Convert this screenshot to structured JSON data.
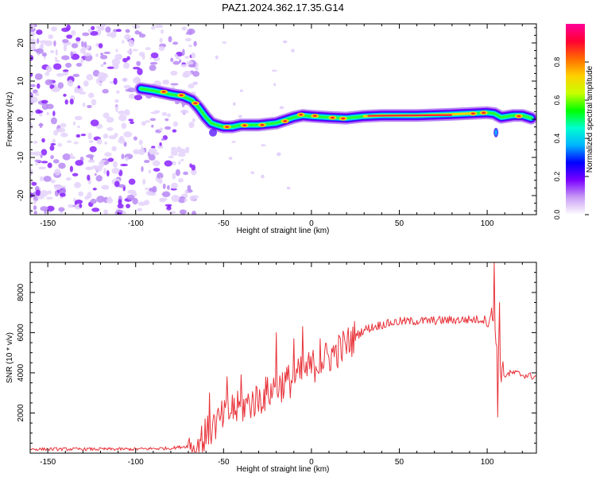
{
  "title": "PAZ1.2024.362.17.35.G14",
  "colors": {
    "snr_line": "#e8333a",
    "frame": "#000000"
  },
  "chart_data": [
    {
      "type": "heatmap",
      "name": "spectrogram",
      "xlabel": "Height of straight line (km)",
      "ylabel": "Frequency (Hz)",
      "xlim": [
        -160,
        128
      ],
      "ylim": [
        -25,
        25
      ],
      "x_ticks": [
        -150,
        -100,
        -50,
        0,
        50,
        100
      ],
      "y_ticks": [
        -20,
        -10,
        0,
        10,
        20
      ],
      "colorbar": {
        "label": "Normalized spectral amplitude",
        "range": [
          0,
          1
        ],
        "ticks": [
          "0.0",
          "0.2",
          "0.4",
          "0.6",
          "0.8"
        ],
        "colormap": [
          "#ffffff",
          "#c99cf5",
          "#7a00ff",
          "#0000ff",
          "#00b4ff",
          "#00ffd0",
          "#00ff00",
          "#c8ff00",
          "#ffd000",
          "#ff6a00",
          "#ff0033",
          "#ff0099"
        ]
      },
      "ridge": {
        "x": [
          -97,
          -90,
          -80,
          -73,
          -68,
          -64,
          -60,
          -57,
          -54,
          -50,
          -45,
          -40,
          -30,
          -20,
          -10,
          -5,
          0,
          10,
          20,
          30,
          40,
          60,
          80,
          90,
          100,
          104,
          108,
          115,
          120,
          125
        ],
        "y": [
          8,
          7.5,
          6.5,
          6,
          5,
          3,
          0.5,
          -1,
          -1.5,
          -2,
          -2,
          -1.5,
          -1.5,
          -1,
          0.5,
          1,
          0.8,
          0.5,
          0.3,
          0.8,
          1,
          1,
          1.3,
          1.5,
          1.7,
          1.5,
          0.5,
          1,
          1,
          0.3
        ]
      }
    },
    {
      "type": "line",
      "name": "snr",
      "xlabel": "Height of straight line (km)",
      "ylabel": "SNR (10 * v/v)",
      "xlim": [
        -160,
        128
      ],
      "ylim": [
        0,
        9500
      ],
      "x_ticks": [
        -150,
        -100,
        -50,
        0,
        50,
        100
      ],
      "y_ticks": [
        2000,
        4000,
        6000,
        8000
      ],
      "trend": {
        "x": [
          -160,
          -100,
          -80,
          -70,
          -65,
          -60,
          -55,
          -50,
          -40,
          -30,
          -20,
          -10,
          0,
          10,
          20,
          25,
          30,
          40,
          50,
          70,
          90,
          100,
          103,
          105,
          107,
          110,
          115,
          120,
          128
        ],
        "y": [
          200,
          200,
          250,
          350,
          500,
          900,
          1400,
          1800,
          2300,
          2700,
          3300,
          3700,
          4300,
          4800,
          5400,
          5800,
          6150,
          6400,
          6550,
          6600,
          6650,
          6650,
          6800,
          6000,
          4200,
          3900,
          4000,
          3900,
          3800
        ]
      },
      "spikes": [
        {
          "x": -58,
          "y": 3000
        },
        {
          "x": -55,
          "y": 1800
        },
        {
          "x": -48,
          "y": 3800
        },
        {
          "x": -45,
          "y": 2900
        },
        {
          "x": -40,
          "y": 3900
        },
        {
          "x": -20,
          "y": 6000
        },
        {
          "x": -10,
          "y": 5700
        },
        {
          "x": -5,
          "y": 6300
        },
        {
          "x": 5,
          "y": 5700
        },
        {
          "x": 104,
          "y": 9500
        },
        {
          "x": 106,
          "y": 1800
        },
        {
          "x": 107,
          "y": 7500
        }
      ]
    }
  ]
}
